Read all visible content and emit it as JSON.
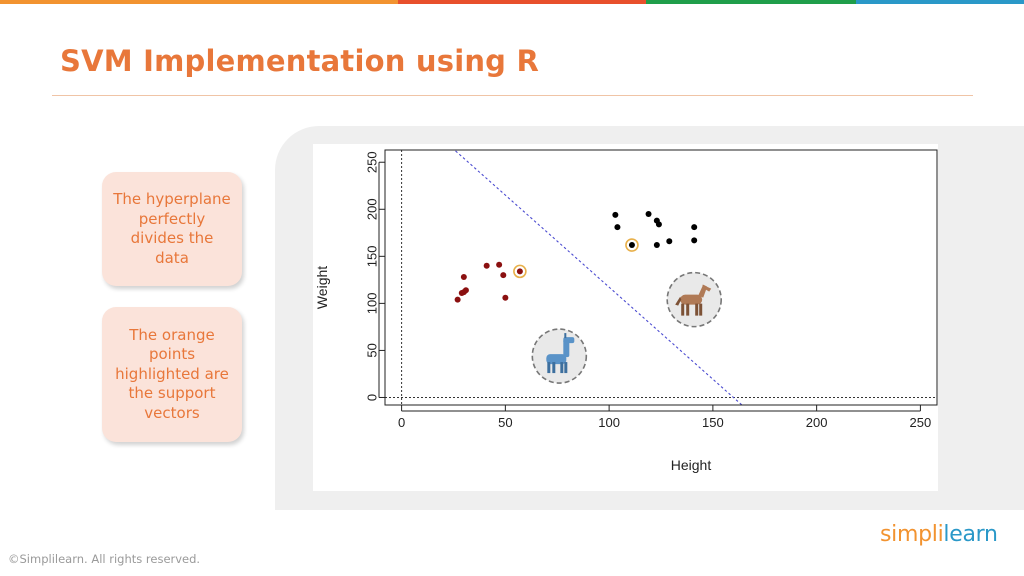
{
  "slide": {
    "title": "SVM Implementation using R",
    "footer": "©Simplilearn. All rights reserved.",
    "logo_part1": "simpli",
    "logo_part2": "learn",
    "accent_color": "#e8773a",
    "top_bar_colors": [
      "#f29330",
      "#e8502c",
      "#1f9e4a",
      "#2a98c8"
    ]
  },
  "callouts": [
    {
      "text": "The hyperplane perfectly divides the data"
    },
    {
      "text": "The orange points highlighted are the support vectors"
    }
  ],
  "chart_data": {
    "type": "scatter",
    "title": "",
    "xlabel": "Height",
    "ylabel": "Weight",
    "xlim": [
      -8,
      258
    ],
    "ylim": [
      -8,
      263
    ],
    "x_ticks": [
      0,
      50,
      100,
      150,
      200,
      250
    ],
    "y_ticks": [
      0,
      50,
      100,
      150,
      200,
      250
    ],
    "grid": false,
    "reference_lines": {
      "x": 0,
      "y": 0
    },
    "hyperplane": {
      "from": [
        26,
        262
      ],
      "to": [
        164,
        -8
      ],
      "color": "#4a4ad0"
    },
    "series": [
      {
        "color": "#8b1010",
        "points": [
          [
            27,
            104
          ],
          [
            29,
            111
          ],
          [
            30,
            112
          ],
          [
            31,
            114
          ],
          [
            30,
            128
          ],
          [
            41,
            140
          ],
          [
            47,
            141
          ],
          [
            49,
            130
          ],
          [
            50,
            106
          ],
          [
            57,
            134
          ]
        ],
        "support_vectors": [
          [
            57,
            134
          ]
        ]
      },
      {
        "color": "#000000",
        "points": [
          [
            103,
            194
          ],
          [
            104,
            181
          ],
          [
            111,
            162
          ],
          [
            119,
            195
          ],
          [
            123,
            188
          ],
          [
            124,
            184
          ],
          [
            123,
            162
          ],
          [
            129,
            166
          ],
          [
            141,
            181
          ],
          [
            141,
            167
          ]
        ],
        "support_vectors": [
          [
            111,
            162
          ]
        ]
      }
    ],
    "support_vector_ring_color": "#e8b04a",
    "icons": [
      {
        "name": "llama-icon",
        "x": 76,
        "y": 44
      },
      {
        "name": "horse-icon",
        "x": 141,
        "y": 104
      }
    ]
  }
}
